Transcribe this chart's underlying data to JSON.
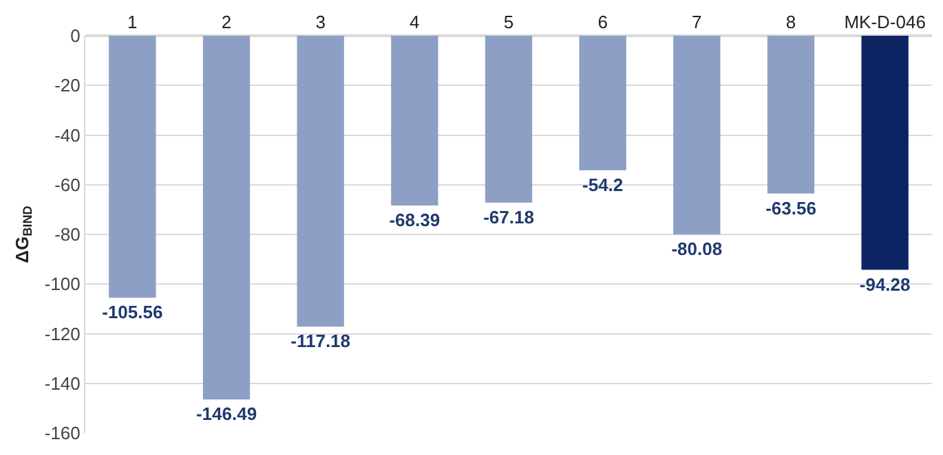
{
  "chart_data": {
    "type": "bar",
    "ylabel": "ΔG$_{BIND}$",
    "categories": [
      "1",
      "2",
      "3",
      "4",
      "5",
      "6",
      "7",
      "8",
      "MK-D-046"
    ],
    "values": [
      -105.56,
      -146.49,
      -117.18,
      -68.39,
      -67.18,
      -54.2,
      -80.08,
      -63.56,
      -94.28
    ],
    "colors": [
      "#8e9fc5",
      "#8e9fc5",
      "#8e9fc5",
      "#8e9fc5",
      "#8e9fc5",
      "#8e9fc5",
      "#8e9fc5",
      "#8e9fc5",
      "#0c2461"
    ],
    "ylim": [
      -160,
      0
    ],
    "yticks": [
      -160,
      -140,
      -120,
      -100,
      -80,
      -60,
      -40,
      -20,
      0
    ],
    "grid": "y",
    "data_labels": true
  }
}
